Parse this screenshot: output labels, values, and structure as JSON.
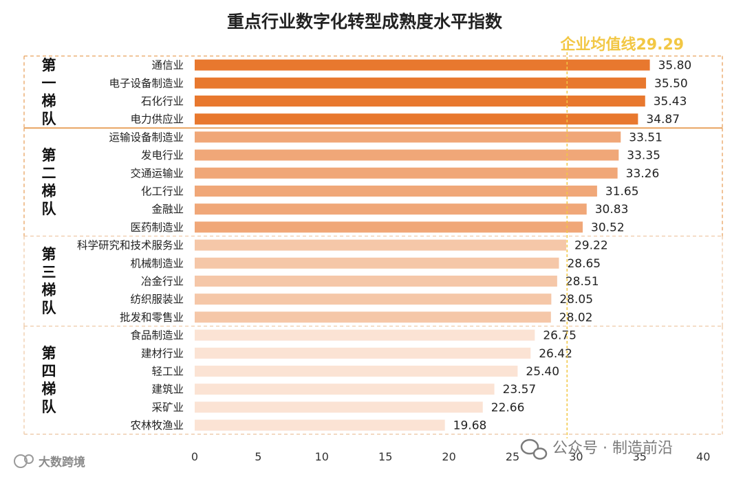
{
  "chart_data": {
    "type": "bar",
    "orientation": "horizontal",
    "title": "重点行业数字化转型成熟度水平指数",
    "xlim": [
      0,
      40
    ],
    "xticks": [
      0,
      5,
      10,
      15,
      20,
      25,
      30,
      35,
      40
    ],
    "grid": false,
    "average_line": {
      "label": "企业均值线29.29",
      "value": 29.29
    },
    "categories": [
      "通信业",
      "电子设备制造业",
      "石化行业",
      "电力供应业",
      "运输设备制造业",
      "发电行业",
      "交通运输业",
      "化工行业",
      "金融业",
      "医药制造业",
      "科学研究和技术服务业",
      "机械制造业",
      "冶金行业",
      "纺织服装业",
      "批发和零售业",
      "食品制造业",
      "建材行业",
      "轻工业",
      "建筑业",
      "采矿业",
      "农林牧渔业"
    ],
    "values": [
      35.8,
      35.5,
      35.43,
      34.87,
      33.51,
      33.35,
      33.26,
      31.65,
      30.83,
      30.52,
      29.22,
      28.65,
      28.51,
      28.05,
      28.02,
      26.75,
      26.42,
      25.4,
      23.57,
      22.66,
      19.68
    ],
    "value_labels": [
      "35.80",
      "35.50",
      "35.43",
      "34.87",
      "33.51",
      "33.35",
      "33.26",
      "31.65",
      "30.83",
      "30.52",
      "29.22",
      "28.65",
      "28.51",
      "28.05",
      "28.02",
      "26.75",
      "26.42",
      "25.40",
      "23.57",
      "22.66",
      "19.68"
    ],
    "tiers": [
      {
        "label": [
          "第",
          "一",
          "梯",
          "队"
        ],
        "start": 0,
        "count": 4,
        "color": "#e8782e",
        "border": "#e8a25e"
      },
      {
        "label": [
          "第",
          "二",
          "梯",
          "队"
        ],
        "start": 4,
        "count": 6,
        "color": "#f0a778",
        "border": "#e8a25e"
      },
      {
        "label": [
          "第",
          "三",
          "梯",
          "队"
        ],
        "start": 10,
        "count": 5,
        "color": "#f5c7a8",
        "border": "#eec9a6"
      },
      {
        "label": [
          "第",
          "四",
          "梯",
          "队"
        ],
        "start": 15,
        "count": 6,
        "color": "#fbe3d4",
        "border": "#eec9a6"
      }
    ]
  },
  "watermark": {
    "account": "公众号 · 制造前沿",
    "brand": "大数跨境"
  }
}
